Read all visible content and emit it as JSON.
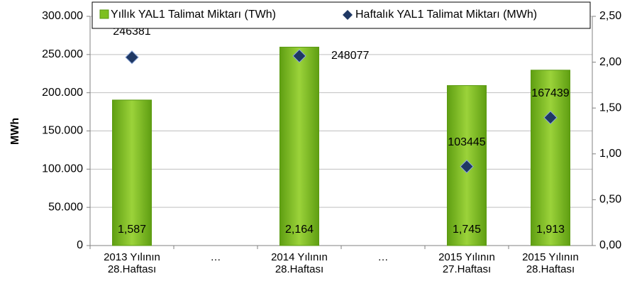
{
  "chart_data": {
    "type": "bar_scatter",
    "y_label": "MWh",
    "categories": [
      [
        "2013 Yılının",
        "28.Haftası"
      ],
      [
        "…"
      ],
      [
        "2014 Yılının",
        "28.Haftası"
      ],
      [
        "…"
      ],
      [
        "2015 Yılının",
        "27.Haftası"
      ],
      [
        "2015 Yılının",
        "28.Haftası"
      ]
    ],
    "series": [
      {
        "name": "Yıllık YAL1 Talimat Miktarı (TWh)",
        "color": "#7dbf1f",
        "axis": "y2",
        "kind": "bar",
        "values": [
          1.587,
          null,
          2.164,
          null,
          1.745,
          1.913
        ],
        "value_labels": [
          "1,587",
          null,
          "2,164",
          null,
          "1,745",
          "1,913"
        ]
      },
      {
        "name": "Haftalık YAL1 Talimat Miktarı (MWh)",
        "color": "#1f3864",
        "kind": "marker",
        "values": [
          246381,
          null,
          248077,
          null,
          103445,
          167439
        ]
      }
    ],
    "ylim": [
      0,
      300000
    ],
    "yticks": [
      {
        "value": 0,
        "label": "0"
      },
      {
        "value": 50000,
        "label": "50.000"
      },
      {
        "value": 100000,
        "label": "100.000"
      },
      {
        "value": 150000,
        "label": "150.000"
      },
      {
        "value": 200000,
        "label": "200.000"
      },
      {
        "value": 250000,
        "label": "250.000"
      },
      {
        "value": 300000,
        "label": "300.000"
      }
    ],
    "y2lim": [
      0,
      2.5
    ],
    "y2ticks": [
      {
        "value": 0,
        "label": "0,00"
      },
      {
        "value": 0.5,
        "label": "0,50"
      },
      {
        "value": 1,
        "label": "1,00"
      },
      {
        "value": 1.5,
        "label": "1,50"
      },
      {
        "value": 2,
        "label": "2,00"
      },
      {
        "value": 2.5,
        "label": "2,50"
      }
    ],
    "grid": true,
    "legend": "top"
  }
}
